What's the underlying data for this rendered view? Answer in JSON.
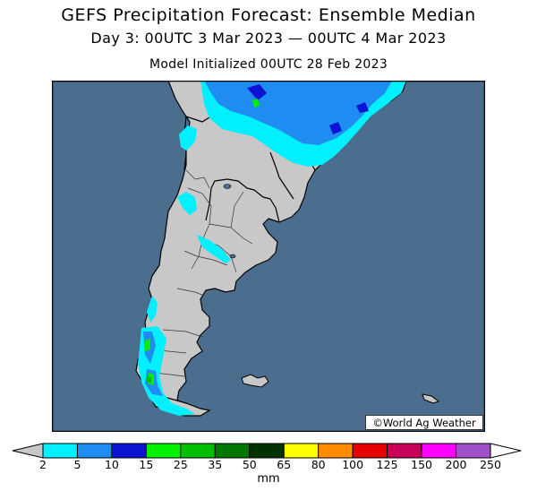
{
  "title": {
    "line1": "GEFS Precipitation Forecast: Ensemble Median",
    "line2": "Day 3: 00UTC 3 Mar 2023 — 00UTC 4 Mar 2023",
    "line3": "Model Initialized 00UTC 28 Feb 2023"
  },
  "credit": "©World Ag Weather",
  "colorbar": {
    "unit": "mm",
    "ticks": [
      "2",
      "5",
      "10",
      "15",
      "25",
      "35",
      "50",
      "65",
      "80",
      "100",
      "125",
      "150",
      "200",
      "250"
    ],
    "bins": [
      {
        "range": "<2",
        "color": "#c8c8c8"
      },
      {
        "range": "2-5",
        "color": "#00f0ff"
      },
      {
        "range": "5-10",
        "color": "#1e8cf0"
      },
      {
        "range": "10-15",
        "color": "#0a14d2"
      },
      {
        "range": "15-25",
        "color": "#00f000"
      },
      {
        "range": "25-35",
        "color": "#00be00"
      },
      {
        "range": "35-50",
        "color": "#007800"
      },
      {
        "range": "50-65",
        "color": "#003200"
      },
      {
        "range": "65-80",
        "color": "#ffff00"
      },
      {
        "range": "80-100",
        "color": "#ff8c00"
      },
      {
        "range": "100-125",
        "color": "#e60000"
      },
      {
        "range": "125-150",
        "color": "#c8005a"
      },
      {
        "range": "150-200",
        "color": "#ff00ff"
      },
      {
        "range": "200-250",
        "color": "#a050c8"
      },
      {
        "range": ">250",
        "color": "#ffffff"
      }
    ]
  },
  "map": {
    "ocean_color": "#4b6d8e",
    "land_color": "#c8c8c8"
  }
}
